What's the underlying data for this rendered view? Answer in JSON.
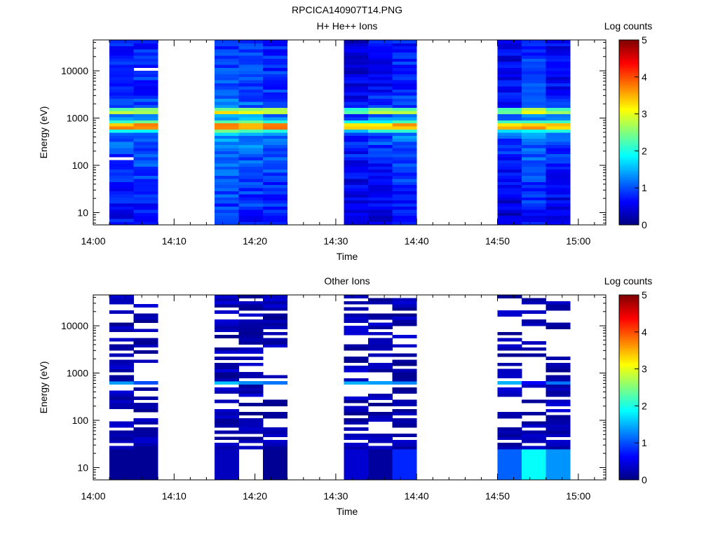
{
  "figure_title": "RPCICA140907T14.PNG",
  "chart_data": [
    {
      "type": "heatmap",
      "title": "H+ He++ Ions",
      "xlabel": "Time",
      "ylabel": "Energy (eV)",
      "colorbar_label": "Log counts",
      "y_scale": "log",
      "ylim_ev": [
        5.5,
        45000
      ],
      "x_ticks": [
        "14:00",
        "14:10",
        "14:20",
        "14:30",
        "14:40",
        "14:50",
        "15:00"
      ],
      "y_ticks": [
        "10",
        "100",
        "1000",
        "10000"
      ],
      "colorbar_ticks": [
        "0",
        "1",
        "2",
        "3",
        "4",
        "5"
      ],
      "colorbar_range": [
        0,
        5
      ],
      "grid": false,
      "columns": [
        {
          "start": "14:02",
          "end": "14:05"
        },
        {
          "start": "14:05",
          "end": "14:08"
        },
        {
          "start": "14:15",
          "end": "14:18"
        },
        {
          "start": "14:18",
          "end": "14:21"
        },
        {
          "start": "14:21",
          "end": "14:24"
        },
        {
          "start": "14:31",
          "end": "14:34"
        },
        {
          "start": "14:34",
          "end": "14:37"
        },
        {
          "start": "14:37",
          "end": "14:40"
        },
        {
          "start": "14:50",
          "end": "14:53"
        },
        {
          "start": "14:53",
          "end": "14:56"
        },
        {
          "start": "14:56",
          "end": "14:59"
        }
      ],
      "gaps": [
        {
          "column": 1,
          "energy_ev": [
            9800,
            11200
          ]
        },
        {
          "column": 0,
          "energy_ev": [
            135,
            152
          ]
        }
      ],
      "profile": {
        "note": "log counts vs energy, typical per column",
        "energy_ev": [
          6,
          25,
          60,
          130,
          230,
          450,
          520,
          600,
          680,
          760,
          900,
          1150,
          1300,
          1450,
          1700,
          3000,
          10000,
          40000
        ],
        "log_counts": [
          0.6,
          0.75,
          0.8,
          0.9,
          1.0,
          1.15,
          1.6,
          3.5,
          3.7,
          3.3,
          1.4,
          1.1,
          2.7,
          3.2,
          1.0,
          0.8,
          0.75,
          0.7
        ]
      },
      "column_offsets": [
        0.0,
        0.05,
        0.25,
        0.15,
        0.1,
        -0.25,
        -0.1,
        0.05,
        -0.2,
        0.1,
        -0.15
      ]
    },
    {
      "type": "heatmap",
      "title": "Other Ions",
      "xlabel": "Time",
      "ylabel": "Energy (eV)",
      "colorbar_label": "Log counts",
      "y_scale": "log",
      "ylim_ev": [
        5.5,
        45000
      ],
      "x_ticks": [
        "14:00",
        "14:10",
        "14:20",
        "14:30",
        "14:40",
        "14:50",
        "15:00"
      ],
      "y_ticks": [
        "10",
        "100",
        "1000",
        "10000"
      ],
      "colorbar_ticks": [
        "0",
        "1",
        "2",
        "3",
        "4",
        "5"
      ],
      "colorbar_range": [
        0,
        5
      ],
      "grid": false,
      "columns": [
        {
          "start": "14:02",
          "end": "14:05"
        },
        {
          "start": "14:05",
          "end": "14:08"
        },
        {
          "start": "14:15",
          "end": "14:18"
        },
        {
          "start": "14:18",
          "end": "14:21"
        },
        {
          "start": "14:21",
          "end": "14:24"
        },
        {
          "start": "14:31",
          "end": "14:34"
        },
        {
          "start": "14:34",
          "end": "14:37"
        },
        {
          "start": "14:37",
          "end": "14:40"
        },
        {
          "start": "14:50",
          "end": "14:53"
        },
        {
          "start": "14:53",
          "end": "14:56"
        },
        {
          "start": "14:56",
          "end": "14:59"
        }
      ],
      "low_energy_block": {
        "energy_ev": [
          5.5,
          26
        ],
        "log_counts_per_column": [
          0.1,
          0.1,
          0.3,
          null,
          0.1,
          0.4,
          0.15,
          0.8,
          1.1,
          1.9,
          1.35
        ]
      },
      "band_peak": {
        "energy_ev": [
          600,
          720
        ],
        "log_counts": [
          1.4,
          1.0,
          1.6,
          1.3,
          1.2,
          1.5,
          1.4,
          1.3,
          1.5,
          0.6,
          1.2
        ]
      },
      "fill_probability": [
        0.4,
        0.35,
        0.6,
        0.55,
        0.5,
        0.5,
        0.35,
        0.5,
        0.55,
        0.35,
        0.45
      ]
    }
  ]
}
